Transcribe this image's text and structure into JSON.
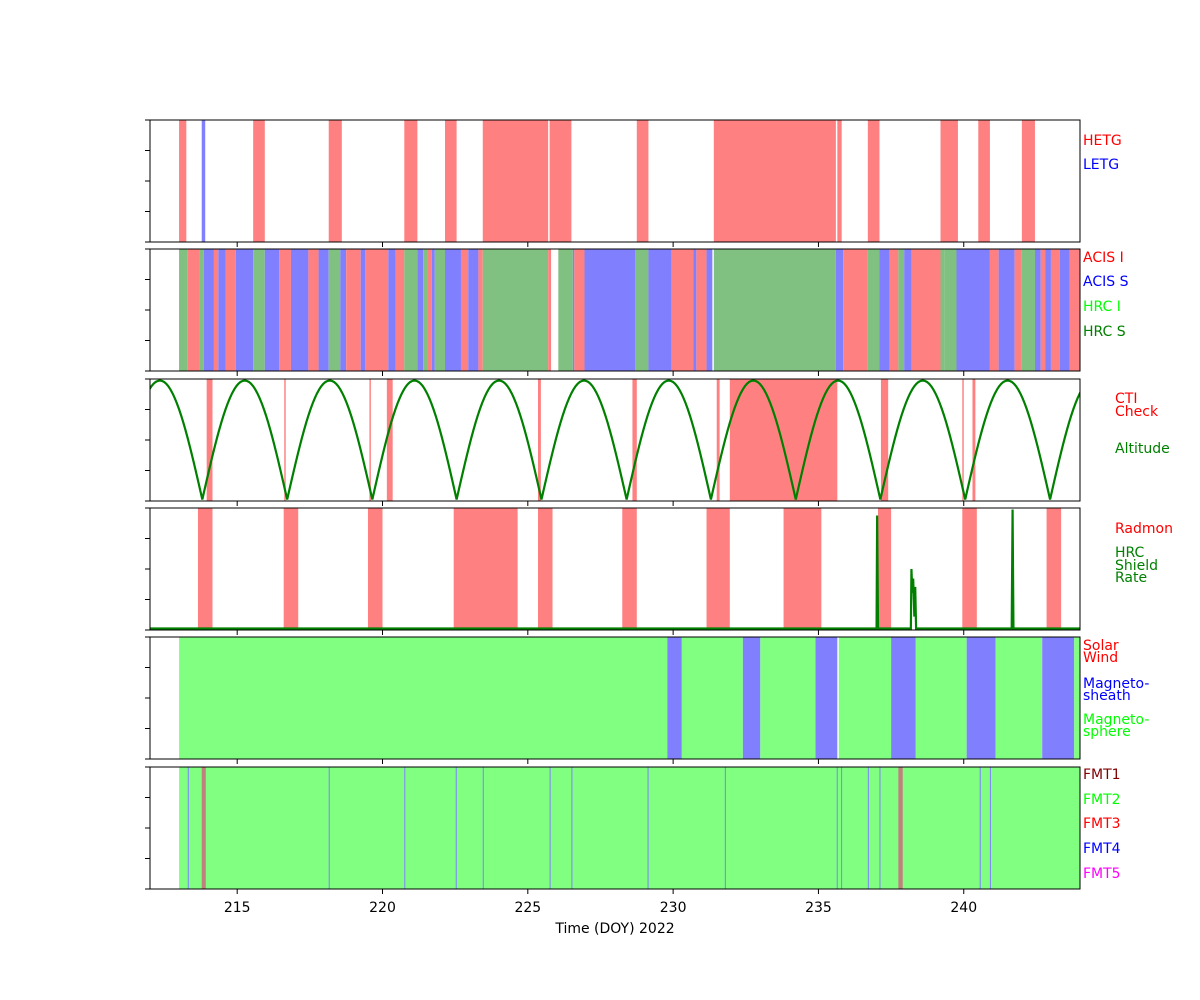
{
  "chart_data": {
    "type": "timeline",
    "xlabel": "Time (DOY) 2022",
    "xlim": [
      212,
      244
    ],
    "xticks": [
      215,
      220,
      225,
      230,
      235,
      240
    ],
    "panels": [
      {
        "id": "grating",
        "legend": [
          {
            "label": "HETG",
            "color": "#ff0000"
          },
          {
            "label": "LETG",
            "color": "#0000ff"
          }
        ],
        "spans": [
          {
            "start": 213.0,
            "end": 213.25,
            "color": "#ff8080"
          },
          {
            "start": 213.78,
            "end": 213.9,
            "color": "#8080ff"
          },
          {
            "start": 215.55,
            "end": 215.95,
            "color": "#ff8080"
          },
          {
            "start": 218.15,
            "end": 218.6,
            "color": "#ff8080"
          },
          {
            "start": 220.75,
            "end": 221.2,
            "color": "#ff8080"
          },
          {
            "start": 222.15,
            "end": 222.55,
            "color": "#ff8080"
          },
          {
            "start": 223.45,
            "end": 225.7,
            "color": "#ff8080"
          },
          {
            "start": 225.75,
            "end": 226.5,
            "color": "#ff8080"
          },
          {
            "start": 228.75,
            "end": 229.15,
            "color": "#ff8080"
          },
          {
            "start": 231.4,
            "end": 235.6,
            "color": "#ff8080"
          },
          {
            "start": 235.65,
            "end": 235.8,
            "color": "#ff8080"
          },
          {
            "start": 236.7,
            "end": 237.1,
            "color": "#ff8080"
          },
          {
            "start": 239.2,
            "end": 239.8,
            "color": "#ff8080"
          },
          {
            "start": 240.5,
            "end": 240.9,
            "color": "#ff8080"
          },
          {
            "start": 242.0,
            "end": 242.45,
            "color": "#ff8080"
          }
        ]
      },
      {
        "id": "instrument",
        "legend": [
          {
            "label": "ACIS I",
            "color": "#ff0000"
          },
          {
            "label": "ACIS S",
            "color": "#0000ff"
          },
          {
            "label": "HRC I",
            "color": "#00ff00"
          },
          {
            "label": "HRC S",
            "color": "#008000"
          }
        ],
        "spans": [
          {
            "start": 213.0,
            "end": 213.3,
            "color": "#80c080"
          },
          {
            "start": 213.3,
            "end": 213.7,
            "color": "#ff8080"
          },
          {
            "start": 213.7,
            "end": 213.85,
            "color": "#80c080"
          },
          {
            "start": 213.85,
            "end": 214.2,
            "color": "#8080ff"
          },
          {
            "start": 214.2,
            "end": 214.35,
            "color": "#ff8080"
          },
          {
            "start": 214.35,
            "end": 214.6,
            "color": "#8080ff"
          },
          {
            "start": 214.6,
            "end": 214.95,
            "color": "#ff8080"
          },
          {
            "start": 214.95,
            "end": 215.2,
            "color": "#8080ff"
          },
          {
            "start": 215.2,
            "end": 215.55,
            "color": "#8080ff"
          },
          {
            "start": 215.55,
            "end": 215.95,
            "color": "#80c080"
          },
          {
            "start": 215.95,
            "end": 216.45,
            "color": "#8080ff"
          },
          {
            "start": 216.45,
            "end": 216.85,
            "color": "#ff8080"
          },
          {
            "start": 216.85,
            "end": 217.45,
            "color": "#8080ff"
          },
          {
            "start": 217.45,
            "end": 217.8,
            "color": "#ff8080"
          },
          {
            "start": 217.8,
            "end": 218.15,
            "color": "#8080ff"
          },
          {
            "start": 218.15,
            "end": 218.55,
            "color": "#80c080"
          },
          {
            "start": 218.55,
            "end": 218.75,
            "color": "#8080ff"
          },
          {
            "start": 218.75,
            "end": 219.25,
            "color": "#ff8080"
          },
          {
            "start": 219.25,
            "end": 219.4,
            "color": "#8080ff"
          },
          {
            "start": 219.4,
            "end": 220.2,
            "color": "#ff8080"
          },
          {
            "start": 220.2,
            "end": 220.45,
            "color": "#8080ff"
          },
          {
            "start": 220.45,
            "end": 220.75,
            "color": "#ff8080"
          },
          {
            "start": 220.75,
            "end": 221.2,
            "color": "#80c080"
          },
          {
            "start": 221.2,
            "end": 221.4,
            "color": "#8080ff"
          },
          {
            "start": 221.4,
            "end": 221.55,
            "color": "#80c080"
          },
          {
            "start": 221.55,
            "end": 221.7,
            "color": "#ff8080"
          },
          {
            "start": 221.7,
            "end": 221.8,
            "color": "#8080ff"
          },
          {
            "start": 221.8,
            "end": 222.15,
            "color": "#80c080"
          },
          {
            "start": 222.15,
            "end": 222.7,
            "color": "#8080ff"
          },
          {
            "start": 222.7,
            "end": 222.95,
            "color": "#ff8080"
          },
          {
            "start": 222.95,
            "end": 223.3,
            "color": "#8080ff"
          },
          {
            "start": 223.3,
            "end": 223.45,
            "color": "#ff8080"
          },
          {
            "start": 223.45,
            "end": 225.7,
            "color": "#80c080"
          },
          {
            "start": 225.7,
            "end": 225.8,
            "color": "#ff8080"
          },
          {
            "start": 226.05,
            "end": 226.55,
            "color": "#80c080"
          },
          {
            "start": 226.55,
            "end": 226.6,
            "color": "#8080ff"
          },
          {
            "start": 226.6,
            "end": 226.95,
            "color": "#ff8080"
          },
          {
            "start": 226.95,
            "end": 228.7,
            "color": "#8080ff"
          },
          {
            "start": 228.7,
            "end": 229.15,
            "color": "#80c080"
          },
          {
            "start": 229.15,
            "end": 229.95,
            "color": "#8080ff"
          },
          {
            "start": 229.95,
            "end": 230.7,
            "color": "#ff8080"
          },
          {
            "start": 230.7,
            "end": 230.8,
            "color": "#8080ff"
          },
          {
            "start": 230.8,
            "end": 231.15,
            "color": "#ff8080"
          },
          {
            "start": 231.15,
            "end": 231.35,
            "color": "#8080ff"
          },
          {
            "start": 231.4,
            "end": 235.6,
            "color": "#80c080"
          },
          {
            "start": 235.6,
            "end": 235.85,
            "color": "#8080ff"
          },
          {
            "start": 235.85,
            "end": 236.7,
            "color": "#ff8080"
          },
          {
            "start": 236.7,
            "end": 237.1,
            "color": "#80c080"
          },
          {
            "start": 237.1,
            "end": 237.45,
            "color": "#8080ff"
          },
          {
            "start": 237.45,
            "end": 237.75,
            "color": "#ff8080"
          },
          {
            "start": 237.75,
            "end": 237.95,
            "color": "#80c080"
          },
          {
            "start": 237.95,
            "end": 238.2,
            "color": "#8080ff"
          },
          {
            "start": 238.2,
            "end": 239.2,
            "color": "#ff8080"
          },
          {
            "start": 239.2,
            "end": 239.35,
            "color": "#80c080"
          },
          {
            "start": 239.35,
            "end": 239.75,
            "color": "#80c080"
          },
          {
            "start": 239.75,
            "end": 240.9,
            "color": "#8080ff"
          },
          {
            "start": 240.9,
            "end": 241.2,
            "color": "#ff8080"
          },
          {
            "start": 241.2,
            "end": 241.75,
            "color": "#8080ff"
          },
          {
            "start": 241.75,
            "end": 242.0,
            "color": "#ff8080"
          },
          {
            "start": 242.0,
            "end": 242.45,
            "color": "#80c080"
          },
          {
            "start": 242.45,
            "end": 242.65,
            "color": "#8080ff"
          },
          {
            "start": 242.65,
            "end": 242.8,
            "color": "#ff8080"
          },
          {
            "start": 242.8,
            "end": 243.0,
            "color": "#8080ff"
          },
          {
            "start": 243.0,
            "end": 243.3,
            "color": "#ff8080"
          },
          {
            "start": 243.3,
            "end": 243.65,
            "color": "#8080ff"
          },
          {
            "start": 243.65,
            "end": 244.0,
            "color": "#ff8080"
          }
        ]
      },
      {
        "id": "cti-altitude",
        "legend": [
          {
            "label": "CTI",
            "color": "#ff0000"
          },
          {
            "label": "Check",
            "color": "#ff0000"
          },
          {
            "label": "Altitude",
            "color": "#008000"
          }
        ],
        "spans": [
          {
            "start": 213.95,
            "end": 214.15,
            "color": "#ff8080"
          },
          {
            "start": 216.62,
            "end": 216.67,
            "color": "#ff8080"
          },
          {
            "start": 219.55,
            "end": 219.6,
            "color": "#ff8080"
          },
          {
            "start": 220.15,
            "end": 220.35,
            "color": "#ff8080"
          },
          {
            "start": 225.35,
            "end": 225.45,
            "color": "#ff8080"
          },
          {
            "start": 228.6,
            "end": 228.75,
            "color": "#ff8080"
          },
          {
            "start": 231.5,
            "end": 231.6,
            "color": "#ff8080"
          },
          {
            "start": 231.95,
            "end": 235.65,
            "color": "#ff8080"
          },
          {
            "start": 237.15,
            "end": 237.4,
            "color": "#ff8080"
          },
          {
            "start": 239.95,
            "end": 240.0,
            "color": "#ff8080"
          },
          {
            "start": 240.3,
            "end": 240.4,
            "color": "#ff8080"
          }
        ],
        "altitude_minima": [
          213.8,
          216.72,
          219.65,
          222.55,
          225.47,
          228.4,
          231.3,
          234.22,
          237.13,
          240.05,
          242.97
        ],
        "altitude_color": "#008000"
      },
      {
        "id": "radmon",
        "legend": [
          {
            "label": "Radmon",
            "color": "#ff0000"
          },
          {
            "label": "HRC",
            "color": "#008000"
          },
          {
            "label": "Shield",
            "color": "#008000"
          },
          {
            "label": "Rate",
            "color": "#008000"
          }
        ],
        "spans": [
          {
            "start": 213.65,
            "end": 214.15,
            "color": "#ff8080"
          },
          {
            "start": 216.6,
            "end": 217.1,
            "color": "#ff8080"
          },
          {
            "start": 219.5,
            "end": 220.0,
            "color": "#ff8080"
          },
          {
            "start": 222.45,
            "end": 224.65,
            "color": "#ff8080"
          },
          {
            "start": 225.35,
            "end": 225.85,
            "color": "#ff8080"
          },
          {
            "start": 228.25,
            "end": 228.75,
            "color": "#ff8080"
          },
          {
            "start": 231.15,
            "end": 231.95,
            "color": "#ff8080"
          },
          {
            "start": 233.8,
            "end": 235.1,
            "color": "#ff8080"
          },
          {
            "start": 237.05,
            "end": 237.5,
            "color": "#ff8080"
          },
          {
            "start": 239.95,
            "end": 240.45,
            "color": "#ff8080"
          },
          {
            "start": 242.85,
            "end": 243.35,
            "color": "#ff8080"
          }
        ],
        "shield_rate": {
          "color": "#008000",
          "ylim": [
            0,
            1
          ],
          "points": [
            [
              212.0,
              0.0
            ],
            [
              237.0,
              0.0
            ],
            [
              237.02,
              0.95
            ],
            [
              237.05,
              0.0
            ],
            [
              238.18,
              0.0
            ],
            [
              238.2,
              0.5
            ],
            [
              238.23,
              0.3
            ],
            [
              238.26,
              0.42
            ],
            [
              238.3,
              0.1
            ],
            [
              238.33,
              0.35
            ],
            [
              238.36,
              0.0
            ],
            [
              241.65,
              0.0
            ],
            [
              241.68,
              1.0
            ],
            [
              241.71,
              0.0
            ],
            [
              244.0,
              0.0
            ]
          ]
        }
      },
      {
        "id": "environment",
        "legend": [
          {
            "label": "Solar",
            "color": "#ff0000"
          },
          {
            "label": "Wind",
            "color": "#ff0000"
          },
          {
            "label": "Magneto-",
            "color": "#0000ff"
          },
          {
            "label": "sheath",
            "color": "#0000ff"
          },
          {
            "label": "Magneto-",
            "color": "#00ff00"
          },
          {
            "label": "sphere",
            "color": "#00ff00"
          }
        ],
        "spans": [
          {
            "start": 213.0,
            "end": 229.8,
            "color": "#80ff80"
          },
          {
            "start": 229.8,
            "end": 230.3,
            "color": "#8080ff"
          },
          {
            "start": 230.3,
            "end": 232.4,
            "color": "#80ff80"
          },
          {
            "start": 232.4,
            "end": 233.0,
            "color": "#8080ff"
          },
          {
            "start": 233.0,
            "end": 234.9,
            "color": "#80ff80"
          },
          {
            "start": 234.9,
            "end": 235.65,
            "color": "#8080ff"
          },
          {
            "start": 235.7,
            "end": 237.5,
            "color": "#80ff80"
          },
          {
            "start": 237.5,
            "end": 238.35,
            "color": "#8080ff"
          },
          {
            "start": 238.35,
            "end": 240.1,
            "color": "#80ff80"
          },
          {
            "start": 240.1,
            "end": 241.1,
            "color": "#8080ff"
          },
          {
            "start": 241.1,
            "end": 242.7,
            "color": "#80ff80"
          },
          {
            "start": 242.7,
            "end": 243.8,
            "color": "#8080ff"
          },
          {
            "start": 243.8,
            "end": 244.0,
            "color": "#80ff80"
          }
        ]
      },
      {
        "id": "fmt",
        "legend": [
          {
            "label": "FMT1",
            "color": "#800000"
          },
          {
            "label": "FMT2",
            "color": "#00ff00"
          },
          {
            "label": "FMT3",
            "color": "#ff0000"
          },
          {
            "label": "FMT4",
            "color": "#0000ff"
          },
          {
            "label": "FMT5",
            "color": "#ff00ff"
          }
        ],
        "spans": [
          {
            "start": 213.0,
            "end": 244.0,
            "color": "#80ff80"
          },
          {
            "start": 213.3,
            "end": 213.33,
            "color": "#8080ff"
          },
          {
            "start": 213.78,
            "end": 213.92,
            "color": "#c08080"
          },
          {
            "start": 218.15,
            "end": 218.18,
            "color": "#8080ff"
          },
          {
            "start": 220.75,
            "end": 220.78,
            "color": "#8080ff"
          },
          {
            "start": 222.52,
            "end": 222.55,
            "color": "#8080ff"
          },
          {
            "start": 223.45,
            "end": 223.48,
            "color": "#8080ff"
          },
          {
            "start": 225.75,
            "end": 225.78,
            "color": "#8080ff"
          },
          {
            "start": 226.5,
            "end": 226.53,
            "color": "#8080ff"
          },
          {
            "start": 229.12,
            "end": 229.15,
            "color": "#8080ff"
          },
          {
            "start": 231.78,
            "end": 231.81,
            "color": "#8080ff"
          },
          {
            "start": 235.63,
            "end": 235.66,
            "color": "#8080ff"
          },
          {
            "start": 235.78,
            "end": 235.81,
            "color": "#8080ff"
          },
          {
            "start": 236.7,
            "end": 236.73,
            "color": "#8080ff"
          },
          {
            "start": 237.1,
            "end": 237.13,
            "color": "#8080ff"
          },
          {
            "start": 237.75,
            "end": 237.9,
            "color": "#c08080"
          },
          {
            "start": 240.55,
            "end": 240.58,
            "color": "#8080ff"
          },
          {
            "start": 240.9,
            "end": 240.93,
            "color": "#8080ff"
          }
        ]
      }
    ]
  }
}
